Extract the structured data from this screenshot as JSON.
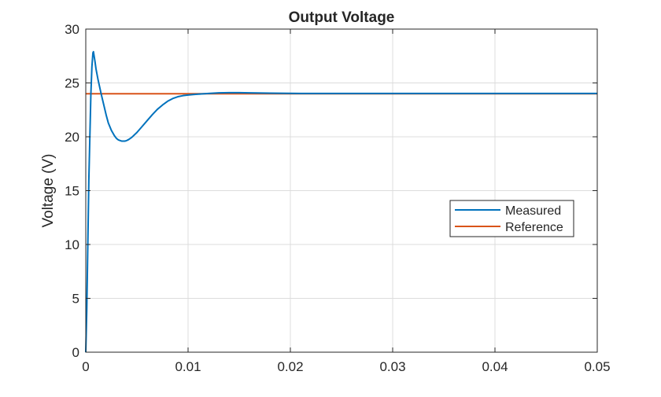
{
  "chart_data": {
    "type": "line",
    "title": "Output Voltage",
    "xlabel": "",
    "ylabel": "Voltage (V)",
    "xlim": [
      0,
      0.05
    ],
    "ylim": [
      0,
      30
    ],
    "xticks": [
      0,
      0.01,
      0.02,
      0.03,
      0.04,
      0.05
    ],
    "xtick_labels": [
      "0",
      "0.01",
      "0.02",
      "0.03",
      "0.04",
      "0.05"
    ],
    "yticks": [
      0,
      5,
      10,
      15,
      20,
      25,
      30
    ],
    "ytick_labels": [
      "0",
      "5",
      "10",
      "15",
      "20",
      "25",
      "30"
    ],
    "grid": true,
    "legend_position": "right",
    "series": [
      {
        "name": "Measured",
        "color": "#0072BD",
        "x": [
          0,
          0.0001,
          0.0002,
          0.0003,
          0.0004,
          0.0005,
          0.0006,
          0.0007,
          0.00075,
          0.0008,
          0.0009,
          0.001,
          0.0012,
          0.0015,
          0.0018,
          0.002,
          0.0022,
          0.0025,
          0.0028,
          0.003,
          0.0032,
          0.0035,
          0.0037,
          0.0038,
          0.0039,
          0.004,
          0.0042,
          0.0045,
          0.005,
          0.0055,
          0.006,
          0.0065,
          0.007,
          0.0075,
          0.008,
          0.0085,
          0.009,
          0.0095,
          0.01,
          0.0105,
          0.011,
          0.012,
          0.013,
          0.014,
          0.015,
          0.016,
          0.018,
          0.02,
          0.025,
          0.03,
          0.035,
          0.04,
          0.045,
          0.05
        ],
        "y": [
          0,
          4,
          10,
          16,
          20,
          24,
          26.5,
          27.8,
          27.9,
          27.6,
          27.0,
          26.3,
          25.3,
          24.0,
          22.8,
          22.0,
          21.3,
          20.6,
          20.1,
          19.85,
          19.7,
          19.6,
          19.6,
          19.6,
          19.62,
          19.65,
          19.75,
          19.95,
          20.4,
          20.95,
          21.5,
          22.05,
          22.55,
          22.95,
          23.3,
          23.55,
          23.72,
          23.82,
          23.88,
          23.92,
          23.96,
          24.02,
          24.08,
          24.1,
          24.1,
          24.08,
          24.05,
          24.03,
          24.02,
          24.02,
          24.02,
          24.02,
          24.02,
          24.02
        ]
      },
      {
        "name": "Reference",
        "color": "#D95319",
        "x": [
          0,
          0.05
        ],
        "y": [
          24,
          24
        ]
      }
    ]
  }
}
